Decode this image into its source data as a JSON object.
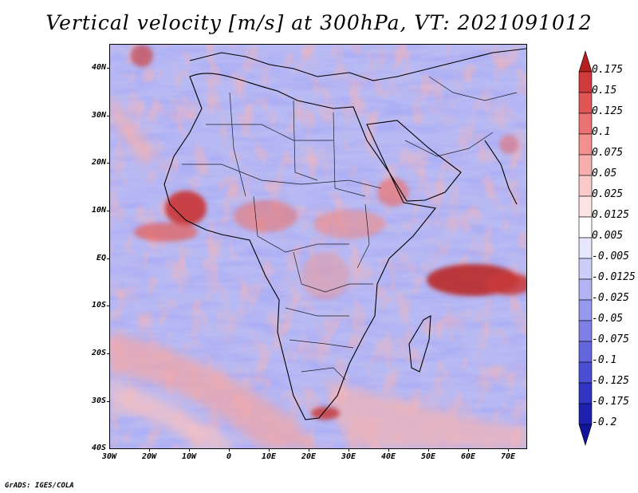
{
  "title": "Vertical velocity [m/s] at 300hPa, VT: 2021091012",
  "credit": "GrADS: IGES/COLA",
  "map": {
    "region": "Africa",
    "lon_range": [
      -30,
      75
    ],
    "lat_range": [
      -40,
      45
    ],
    "lat_labels": [
      "40N",
      "30N",
      "20N",
      "10N",
      "EQ",
      "10S",
      "20S",
      "30S",
      "40S"
    ],
    "lon_labels": [
      "30W",
      "20W",
      "10W",
      "0",
      "10E",
      "20E",
      "30E",
      "40E",
      "50E",
      "60E",
      "70E"
    ]
  },
  "colorbar": {
    "levels": [
      "0.175",
      "0.15",
      "0.125",
      "0.1",
      "0.075",
      "0.05",
      "0.025",
      "0.0125",
      "0.005",
      "-0.005",
      "-0.0125",
      "-0.025",
      "-0.05",
      "-0.075",
      "-0.1",
      "-0.125",
      "-0.175",
      "-0.2"
    ],
    "colors": [
      "#b41f1f",
      "#d03a3a",
      "#e05656",
      "#eb7272",
      "#f29090",
      "#f6aeae",
      "#facaca",
      "#fde4e4",
      "#ffffff",
      "#e6e6fc",
      "#cccdf8",
      "#b2b3f3",
      "#9799ee",
      "#7e80e6",
      "#6466dd",
      "#4b4dd2",
      "#3235c4",
      "#1e21b0",
      "#11149a"
    ]
  }
}
